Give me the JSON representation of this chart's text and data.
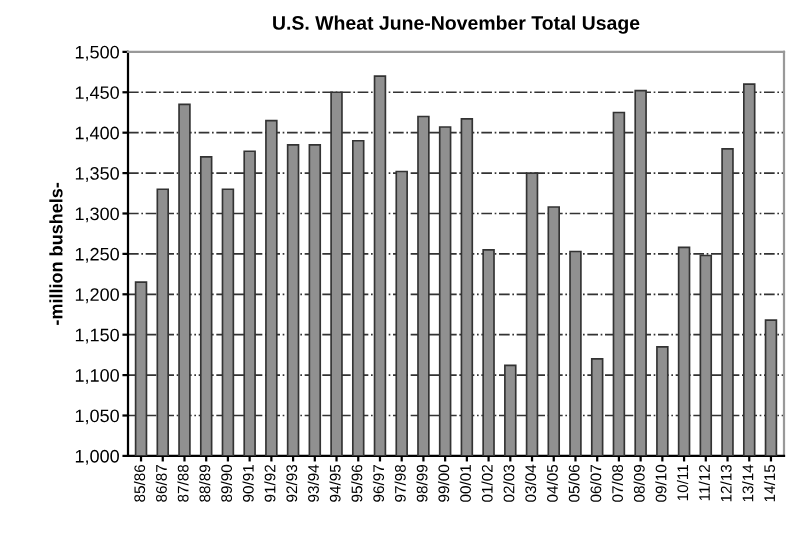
{
  "chart_data": {
    "type": "bar",
    "title": "U.S. Wheat June-November Total Usage",
    "ylabel": "-million bushels-",
    "categories": [
      "85/86",
      "86/87",
      "87/88",
      "88/89",
      "89/90",
      "90/91",
      "91/92",
      "92/93",
      "93/94",
      "94/95",
      "95/96",
      "96/97",
      "97/98",
      "98/99",
      "99/00",
      "00/01",
      "01/02",
      "02/03",
      "03/04",
      "04/05",
      "05/06",
      "06/07",
      "07/08",
      "08/09",
      "09/10",
      "10/11",
      "11/12",
      "12/13",
      "13/14",
      "14/15"
    ],
    "values": [
      1215,
      1330,
      1435,
      1370,
      1330,
      1377,
      1415,
      1385,
      1385,
      1450,
      1390,
      1470,
      1352,
      1420,
      1407,
      1417,
      1255,
      1112,
      1350,
      1308,
      1253,
      1120,
      1425,
      1452,
      1135,
      1258,
      1248,
      1380,
      1460,
      1168
    ],
    "color": "#909090",
    "ylim": [
      1000,
      1500
    ],
    "yticks": [
      {
        "value": 1000,
        "label": "1,000"
      },
      {
        "value": 1050,
        "label": "1,050"
      },
      {
        "value": 1100,
        "label": "1,100"
      },
      {
        "value": 1150,
        "label": "1,150"
      },
      {
        "value": 1200,
        "label": "1,200"
      },
      {
        "value": 1250,
        "label": "1,250"
      },
      {
        "value": 1300,
        "label": "1,300"
      },
      {
        "value": 1350,
        "label": "1,350"
      },
      {
        "value": 1400,
        "label": "1,400"
      },
      {
        "value": 1450,
        "label": "1,450"
      },
      {
        "value": 1500,
        "label": "1,500"
      }
    ],
    "grid": "y",
    "line_style": "dashdot"
  }
}
